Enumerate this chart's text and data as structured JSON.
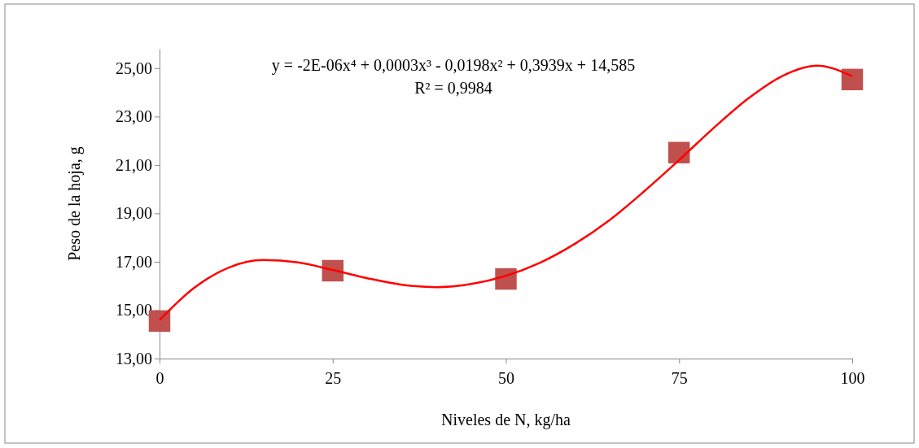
{
  "chart_data": {
    "type": "scatter",
    "xlabel": "Niveles de N, kg/ha",
    "ylabel": "Peso de la hoja, g",
    "xlim": [
      0,
      100
    ],
    "xticks": [
      0,
      25,
      50,
      75,
      100
    ],
    "ylim": [
      13,
      25.8
    ],
    "yticks": [
      {
        "value": 13,
        "label": "13,00"
      },
      {
        "value": 15,
        "label": "15,00"
      },
      {
        "value": 17,
        "label": "17,00"
      },
      {
        "value": 19,
        "label": "19,00"
      },
      {
        "value": 21,
        "label": "21,00"
      },
      {
        "value": 23,
        "label": "23,00"
      },
      {
        "value": 25,
        "label": "25,00"
      }
    ],
    "grid": false,
    "annotations": [
      "y = -2E-06x⁴ + 0,0003x³ - 0,0198x² + 0,3939x + 14,585",
      "R² = 0,9984"
    ],
    "series": [
      {
        "marker": "square",
        "color": "#c0504d",
        "x": [
          0,
          25,
          50,
          75,
          100
        ],
        "values": [
          14.55,
          16.63,
          16.29,
          21.51,
          24.53
        ]
      },
      {
        "type": "line",
        "marker": "none",
        "line_style": "solid",
        "color": "#ff0000",
        "x": [
          0,
          5,
          10,
          15,
          20,
          25,
          30,
          35,
          40,
          45,
          50,
          55,
          60,
          65,
          70,
          75,
          80,
          85,
          90,
          95,
          100
        ],
        "values": [
          14.59,
          15.92,
          16.76,
          17.07,
          16.97,
          16.66,
          16.32,
          16.05,
          15.95,
          16.08,
          16.42,
          16.97,
          17.75,
          18.73,
          19.92,
          21.2,
          22.53,
          23.75,
          24.69,
          25.1,
          24.66
        ]
      }
    ]
  }
}
